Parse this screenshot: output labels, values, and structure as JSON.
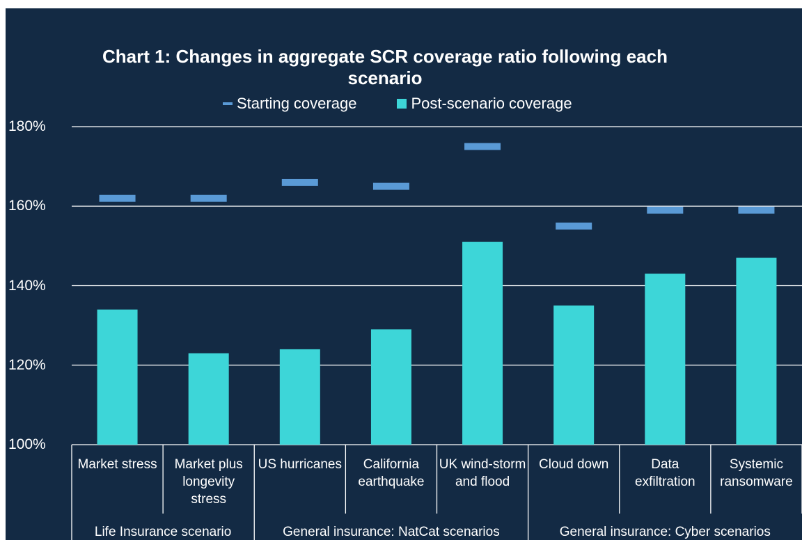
{
  "chart_data": {
    "type": "bar",
    "title": "Chart 1: Changes in aggregate SCR coverage ratio following each scenario",
    "groups": [
      {
        "name": "Life Insurance scenario",
        "categories": [
          "Market stress",
          "Market plus longevity stress"
        ]
      },
      {
        "name": "General insurance: NatCat scenarios",
        "categories": [
          "US hurricanes",
          "California earthquake",
          "UK wind-storm and flood"
        ]
      },
      {
        "name": "General insurance: Cyber scenarios",
        "categories": [
          "Cloud down",
          "Data exfiltration",
          "Systemic ransomware"
        ]
      }
    ],
    "series": [
      {
        "name": "Starting coverage",
        "color": "#5a9ad6",
        "marker": "dash",
        "values": [
          162,
          162,
          166,
          165,
          175,
          155,
          159,
          159
        ]
      },
      {
        "name": "Post-scenario coverage",
        "color": "#3dd6d8",
        "marker": "bar",
        "values": [
          134,
          123,
          124,
          129,
          151,
          135,
          143,
          147
        ]
      }
    ],
    "ylim": [
      100,
      180
    ],
    "yticks": [
      {
        "value": 100,
        "label": "100%"
      },
      {
        "value": 120,
        "label": "120%"
      },
      {
        "value": 140,
        "label": "140%"
      },
      {
        "value": 160,
        "label": "160%"
      },
      {
        "value": 180,
        "label": "180%"
      }
    ],
    "grid": true,
    "legend": "top"
  }
}
